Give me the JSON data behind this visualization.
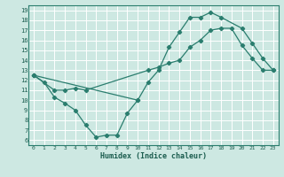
{
  "xlabel": "Humidex (Indice chaleur)",
  "bg_color": "#cde8e2",
  "grid_color": "#ffffff",
  "line_color": "#2a7d6e",
  "xlim": [
    -0.5,
    23.5
  ],
  "ylim": [
    5.5,
    19.5
  ],
  "xticks": [
    0,
    1,
    2,
    3,
    4,
    5,
    6,
    7,
    8,
    9,
    10,
    11,
    12,
    13,
    14,
    15,
    16,
    17,
    18,
    19,
    20,
    21,
    22,
    23
  ],
  "yticks": [
    6,
    7,
    8,
    9,
    10,
    11,
    12,
    13,
    14,
    15,
    16,
    17,
    18,
    19
  ],
  "line1_x": [
    0,
    1,
    2,
    3,
    4,
    5,
    6,
    7,
    8,
    9,
    10
  ],
  "line1_y": [
    12.5,
    11.8,
    10.3,
    9.7,
    9.0,
    7.5,
    6.3,
    6.5,
    6.5,
    8.7,
    10.0
  ],
  "line2_x": [
    0,
    10,
    11,
    12,
    13,
    14,
    15,
    16,
    17,
    18,
    20,
    21,
    22,
    23
  ],
  "line2_y": [
    12.5,
    10.0,
    11.8,
    13.0,
    15.3,
    16.8,
    18.3,
    18.3,
    18.8,
    18.3,
    17.2,
    15.7,
    14.2,
    13.0
  ],
  "line3_x": [
    0,
    2,
    3,
    4,
    5,
    11,
    12,
    13,
    14,
    15,
    16,
    17,
    18,
    19,
    20,
    21,
    22,
    23
  ],
  "line3_y": [
    12.5,
    11.0,
    11.0,
    11.2,
    11.0,
    13.0,
    13.3,
    13.7,
    14.0,
    15.3,
    16.0,
    17.0,
    17.2,
    17.2,
    15.5,
    14.2,
    13.0,
    13.0
  ]
}
